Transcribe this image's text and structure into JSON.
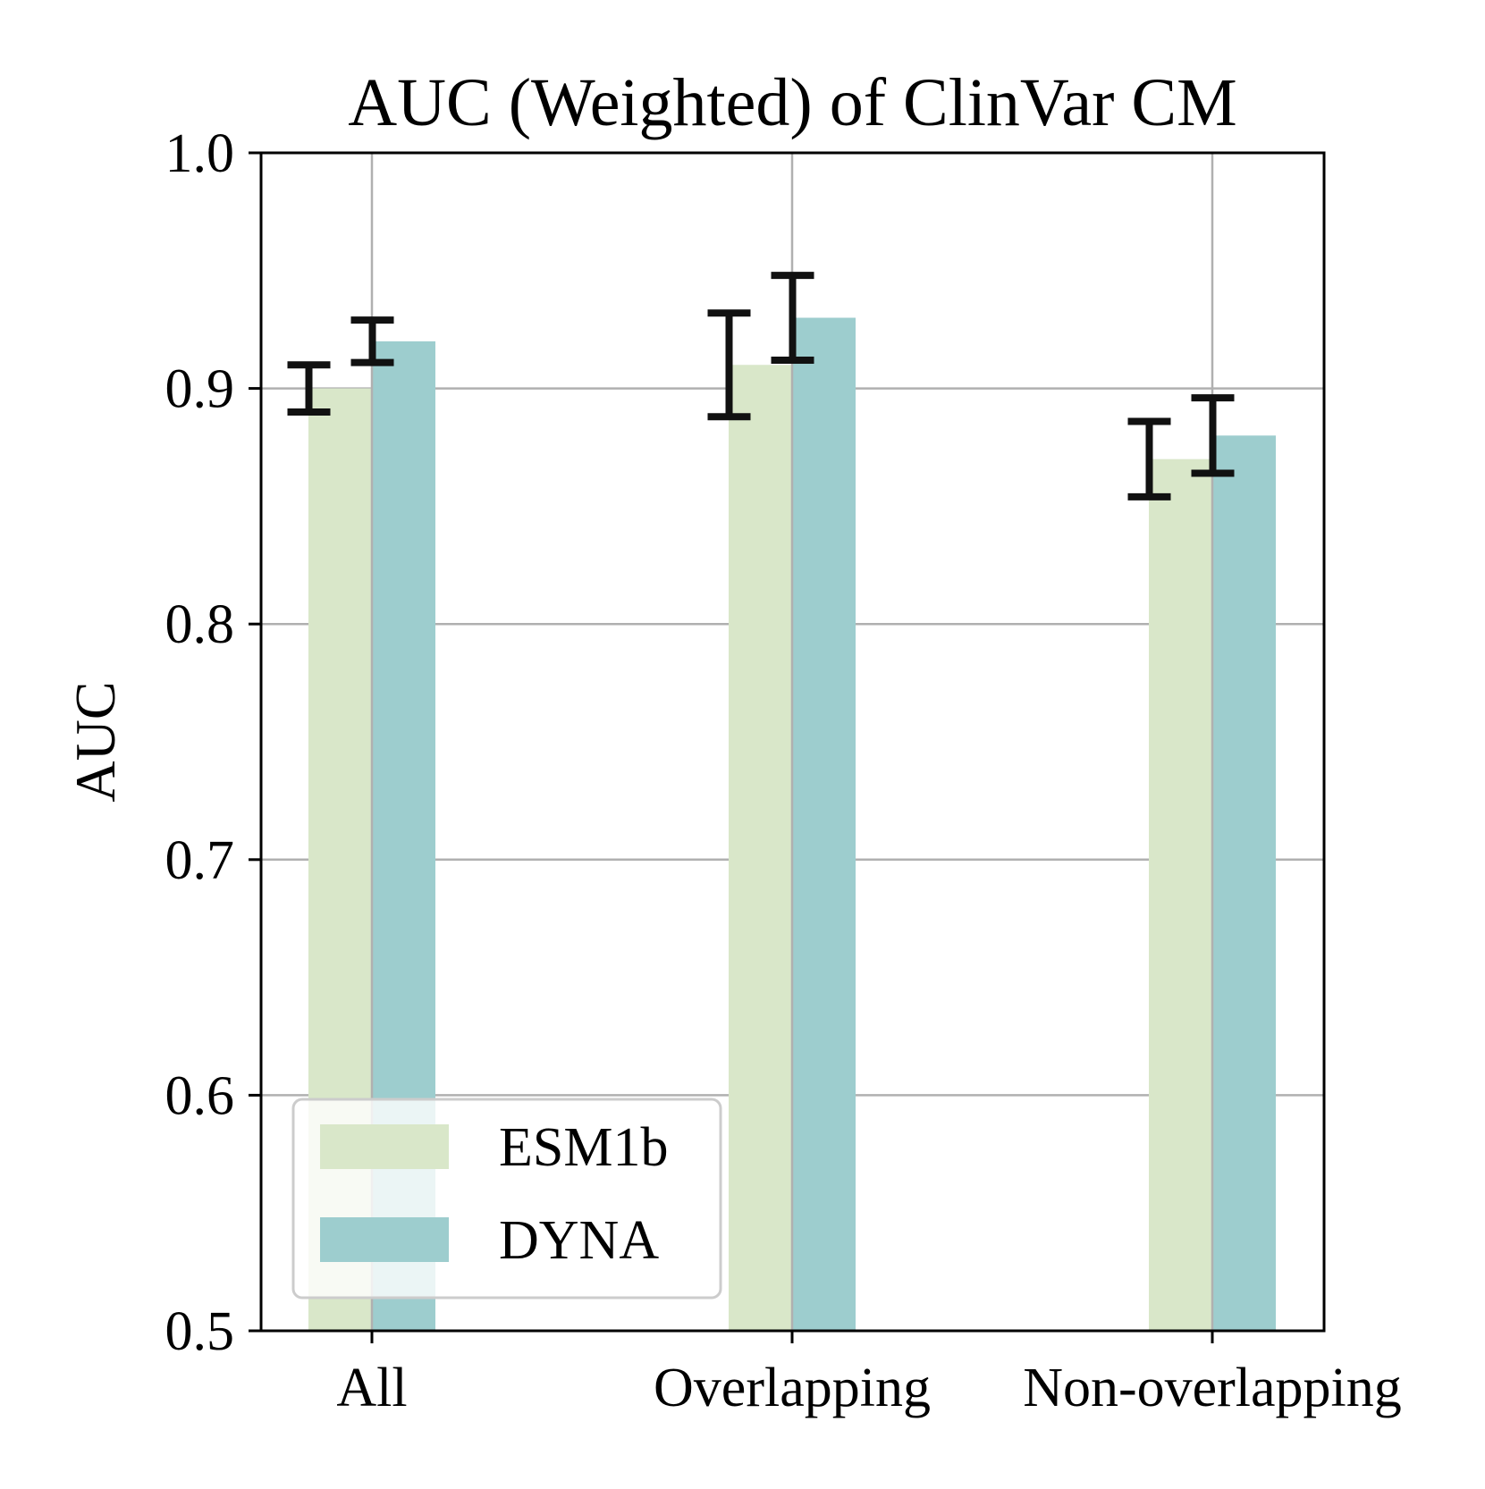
{
  "chart_data": {
    "type": "bar",
    "title": "AUC (Weighted) of ClinVar CM",
    "xlabel": "",
    "ylabel": "AUC",
    "ylim": [
      0.5,
      1.0
    ],
    "yticks": [
      "0.5",
      "0.6",
      "0.7",
      "0.8",
      "0.9",
      "1.0"
    ],
    "categories": [
      "All",
      "Overlapping",
      "Non-overlapping"
    ],
    "grid": true,
    "legend_position": "lower-left",
    "series": [
      {
        "name": "ESM1b",
        "color": "#d9e7c9",
        "values": [
          0.9,
          0.91,
          0.87
        ],
        "error_low": [
          0.89,
          0.888,
          0.854
        ],
        "error_high": [
          0.91,
          0.932,
          0.886
        ]
      },
      {
        "name": "DYNA",
        "color": "#9dcdce",
        "values": [
          0.92,
          0.93,
          0.88
        ],
        "error_low": [
          0.911,
          0.912,
          0.864
        ],
        "error_high": [
          0.929,
          0.948,
          0.896
        ]
      }
    ]
  }
}
